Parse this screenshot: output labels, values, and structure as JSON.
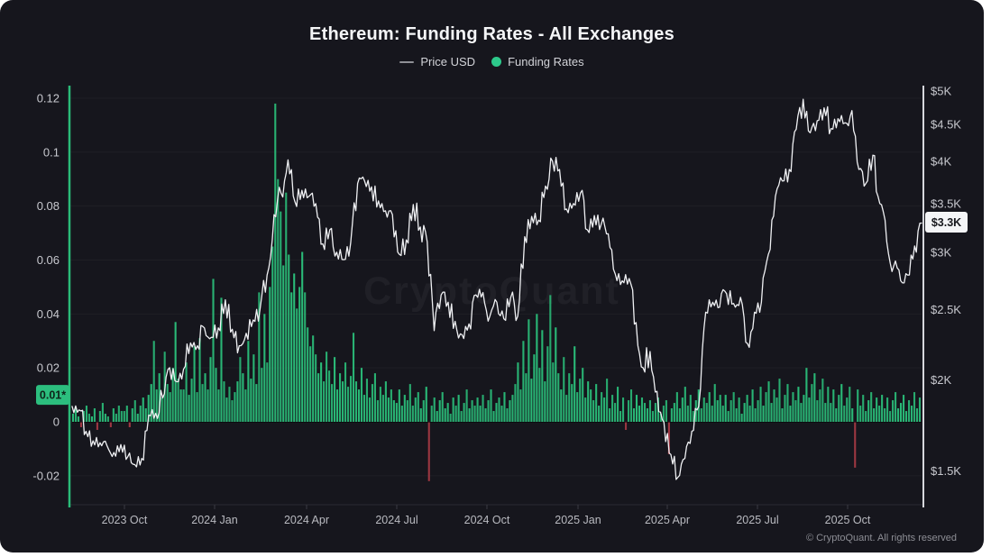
{
  "card": {
    "title": "Ethereum: Funding Rates - All Exchanges",
    "watermark": "CryptoQuant",
    "copyright": "© CryptoQuant. All rights reserved"
  },
  "legend": [
    {
      "label": "Price USD",
      "marker": "line",
      "color": "#8f9096"
    },
    {
      "label": "Funding Rates",
      "marker": "dot",
      "color": "#2dc98b"
    }
  ],
  "colors": {
    "background": "#16161d",
    "bars_positive": "#2abb78",
    "bars_negative": "#a93a45",
    "price_line": "#eff0f3",
    "left_axis_line": "#2abb78",
    "right_axis_line": "#d6d7dc",
    "left_badge_bg": "#2cbe7e",
    "left_badge_text": "#0f241a",
    "right_badge_bg": "#f4f5f7",
    "right_badge_text": "#17181d",
    "tick_text": "#c7c8ce",
    "xtick_text": "#b9bac0"
  },
  "left_axis": {
    "ticks": [
      "0.12",
      "0.1",
      "0.08",
      "0.06",
      "0.04",
      "0.02",
      "0",
      "-0.02"
    ],
    "tick_values": [
      0.12,
      0.1,
      0.08,
      0.06,
      0.04,
      0.02,
      0,
      -0.02
    ],
    "range": [
      -0.02,
      0.125
    ],
    "badge": {
      "label": "0.01*",
      "value": 0.01
    }
  },
  "right_axis": {
    "ticks": [
      "$5K",
      "$4.5K",
      "$4K",
      "$3.5K",
      "$3K",
      "$2.5K",
      "$2K",
      "$1.5K"
    ],
    "tick_values": [
      5000,
      4500,
      4000,
      3500,
      3000,
      2500,
      2000,
      1500
    ],
    "scale": "log",
    "range": [
      1400,
      5200
    ],
    "badge": {
      "label": "$3.3K",
      "value": 3300
    }
  },
  "x_axis": {
    "ticks": [
      "2023 Oct",
      "2024 Jan",
      "2024 Apr",
      "2024 Jul",
      "2024 Oct",
      "2025 Jan",
      "2025 Apr",
      "2025 Jul",
      "2025 Oct"
    ]
  },
  "chart_data": {
    "type": "mixed",
    "x_range": {
      "start": "2023-08",
      "end": "2025-12"
    },
    "grid": "subtle-horizontal",
    "legend_position": "top-center",
    "series": [
      {
        "name": "Price USD",
        "type": "line",
        "axis": "right",
        "scale": "log",
        "unit": "USD",
        "sampling": "weekly",
        "values": [
          1840,
          1820,
          1700,
          1650,
          1640,
          1625,
          1590,
          1630,
          1570,
          1530,
          1560,
          1790,
          1800,
          1890,
          2080,
          1990,
          2070,
          2250,
          2230,
          2360,
          2290,
          2360,
          2580,
          2350,
          2230,
          2320,
          2420,
          2510,
          2790,
          3380,
          3620,
          4020,
          3520,
          3650,
          3580,
          3500,
          3080,
          3220,
          3000,
          2930,
          3090,
          3730,
          3760,
          3690,
          3530,
          3420,
          3380,
          2980,
          3120,
          3490,
          3250,
          3100,
          2340,
          2620,
          2560,
          2410,
          2310,
          2390,
          2620,
          2640,
          2450,
          2560,
          2430,
          2600,
          2450,
          3150,
          3360,
          3320,
          3700,
          4000,
          3900,
          3440,
          3500,
          3620,
          3220,
          3370,
          3280,
          3180,
          2800,
          2740,
          2760,
          2400,
          2080,
          2190,
          1930,
          1750,
          1580,
          1470,
          1560,
          1700,
          1840,
          2480,
          2560,
          2520,
          2630,
          2550,
          2600,
          2245,
          2480,
          2560,
          2980,
          3580,
          3760,
          3900,
          4430,
          4870,
          4380,
          4550,
          4740,
          4440,
          4580,
          4520,
          4700,
          3900,
          3730,
          4080,
          3500,
          3100,
          2870,
          2740,
          2790,
          3060,
          3290
        ]
      },
      {
        "name": "Funding Rates",
        "type": "bar",
        "axis": "left",
        "sampling": "2.7-day",
        "values": [
          0.003,
          0.005,
          0.002,
          -0.002,
          0.004,
          0.006,
          0.003,
          0.002,
          0.005,
          -0.003,
          0.004,
          0.007,
          0.003,
          0.002,
          -0.002,
          0.005,
          0.003,
          0.006,
          0.004,
          0.004,
          0.006,
          -0.002,
          0.005,
          0.008,
          0.003,
          0.006,
          0.009,
          0.005,
          0.01,
          0.014,
          0.03,
          0.012,
          0.018,
          0.009,
          0.026,
          0.014,
          0.011,
          0.02,
          0.037,
          0.016,
          0.012,
          0.012,
          0.022,
          0.01,
          0.016,
          0.028,
          0.011,
          0.031,
          0.014,
          0.018,
          0.012,
          0.024,
          0.053,
          0.02,
          0.012,
          0.046,
          0.015,
          0.009,
          0.013,
          0.008,
          0.011,
          0.015,
          0.024,
          0.018,
          0.012,
          0.03,
          0.016,
          0.025,
          0.014,
          0.048,
          0.02,
          0.04,
          0.022,
          0.05,
          0.065,
          0.118,
          0.09,
          0.078,
          0.058,
          0.085,
          0.062,
          0.048,
          0.055,
          0.042,
          0.05,
          0.063,
          0.048,
          0.035,
          0.028,
          0.032,
          0.025,
          0.018,
          0.022,
          0.015,
          0.026,
          0.019,
          0.014,
          0.024,
          0.012,
          0.018,
          0.015,
          0.022,
          0.013,
          0.017,
          0.033,
          0.015,
          0.012,
          0.02,
          0.01,
          0.016,
          0.009,
          0.014,
          0.018,
          0.008,
          0.013,
          0.01,
          0.015,
          0.009,
          0.012,
          0.008,
          0.007,
          0.012,
          0.006,
          0.01,
          0.008,
          0.014,
          0.006,
          0.009,
          0.011,
          0.005,
          0.008,
          0.013,
          -0.022,
          0.006,
          0.009,
          0.004,
          0.008,
          0.011,
          0.005,
          0.007,
          0.003,
          0.009,
          0.006,
          0.01,
          0.004,
          0.007,
          0.012,
          0.005,
          0.008,
          0.006,
          0.009,
          0.006,
          0.01,
          0.005,
          0.008,
          0.012,
          0.004,
          0.007,
          0.009,
          0.006,
          0.011,
          0.005,
          0.008,
          0.01,
          0.014,
          0.022,
          0.012,
          0.03,
          0.018,
          0.038,
          0.016,
          0.025,
          0.04,
          0.02,
          0.034,
          0.015,
          0.028,
          0.047,
          0.022,
          0.035,
          0.018,
          0.012,
          0.024,
          0.01,
          0.018,
          0.014,
          0.028,
          0.011,
          0.016,
          0.02,
          0.009,
          0.015,
          0.012,
          0.008,
          0.014,
          0.006,
          0.011,
          0.009,
          0.016,
          0.005,
          0.01,
          0.007,
          0.013,
          0.004,
          0.009,
          -0.003,
          0.008,
          0.012,
          0.005,
          0.01,
          0.006,
          0.009,
          0.007,
          0.005,
          0.008,
          0.004,
          0.007,
          0.009,
          0.003,
          0.006,
          0.008,
          -0.012,
          0.005,
          0.007,
          0.011,
          0.005,
          0.009,
          0.013,
          0.006,
          0.01,
          0.004,
          0.008,
          0.012,
          0.005,
          0.009,
          0.007,
          0.011,
          0.006,
          0.014,
          0.008,
          0.01,
          0.006,
          0.01,
          0.004,
          0.008,
          0.011,
          0.005,
          0.009,
          0.003,
          0.007,
          0.01,
          0.006,
          0.012,
          0.005,
          0.008,
          0.013,
          0.006,
          0.011,
          0.015,
          0.007,
          0.012,
          0.009,
          0.016,
          0.005,
          0.01,
          0.014,
          0.006,
          0.011,
          0.008,
          0.013,
          0.007,
          0.01,
          0.02,
          0.009,
          0.014,
          0.018,
          0.008,
          0.012,
          0.016,
          0.007,
          0.013,
          0.007,
          0.012,
          0.005,
          0.01,
          0.014,
          0.006,
          0.009,
          0.013,
          0.005,
          -0.017,
          0.012,
          0.006,
          0.01,
          0.004,
          0.008,
          0.011,
          0.005,
          0.009,
          0.006,
          0.01,
          0.005,
          0.009,
          0.004,
          0.008,
          0.011,
          0.005,
          0.007,
          0.01,
          0.004,
          0.008,
          0.006,
          0.011,
          0.005,
          0.009
        ]
      }
    ]
  }
}
